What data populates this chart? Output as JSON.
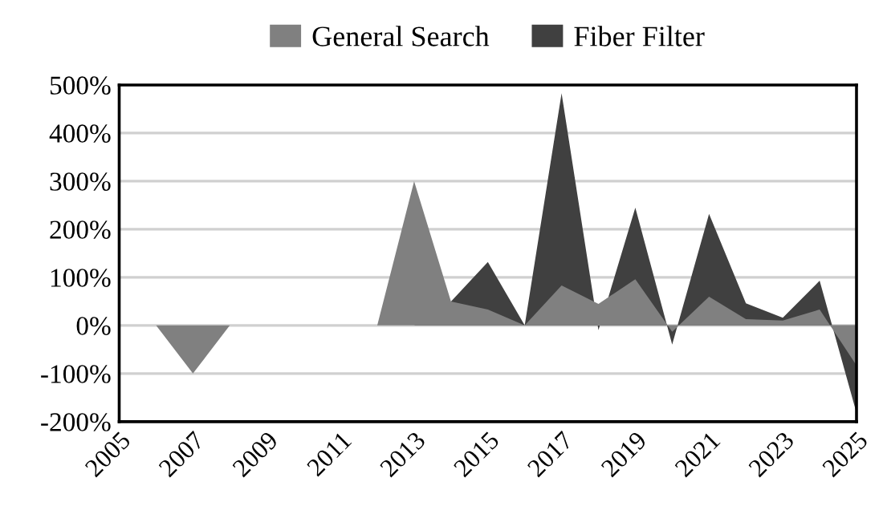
{
  "chart_data": {
    "type": "area",
    "x": [
      2005,
      2006,
      2007,
      2008,
      2009,
      2010,
      2011,
      2012,
      2013,
      2014,
      2015,
      2016,
      2017,
      2018,
      2019,
      2020,
      2021,
      2022,
      2023,
      2024,
      2025
    ],
    "series": [
      {
        "name": "General Search",
        "color": "#808080",
        "values": [
          0,
          0,
          -100,
          0,
          0,
          0,
          0,
          0,
          300,
          50,
          33,
          0,
          83,
          45,
          96,
          -13,
          60,
          13,
          10,
          33,
          -83
        ]
      },
      {
        "name": "Fiber Filter",
        "color": "#404040",
        "values": [
          0,
          0,
          0,
          0,
          0,
          0,
          0,
          0,
          0,
          50,
          132,
          0,
          483,
          -10,
          245,
          -40,
          232,
          46,
          16,
          93,
          -182
        ]
      }
    ],
    "xlim": [
      2005,
      2025
    ],
    "xticks": [
      2005,
      2007,
      2009,
      2011,
      2013,
      2015,
      2017,
      2019,
      2021,
      2023,
      2025
    ],
    "ylim": [
      -200,
      500
    ],
    "yticks": [
      {
        "value": -200,
        "label": "-200%"
      },
      {
        "value": -100,
        "label": "-100%"
      },
      {
        "value": 0,
        "label": "0%"
      },
      {
        "value": 100,
        "label": "100%"
      },
      {
        "value": 200,
        "label": "200%"
      },
      {
        "value": 300,
        "label": "300%"
      },
      {
        "value": 400,
        "label": "400%"
      },
      {
        "value": 500,
        "label": "500%"
      }
    ],
    "grid": "y",
    "legend": "top"
  }
}
